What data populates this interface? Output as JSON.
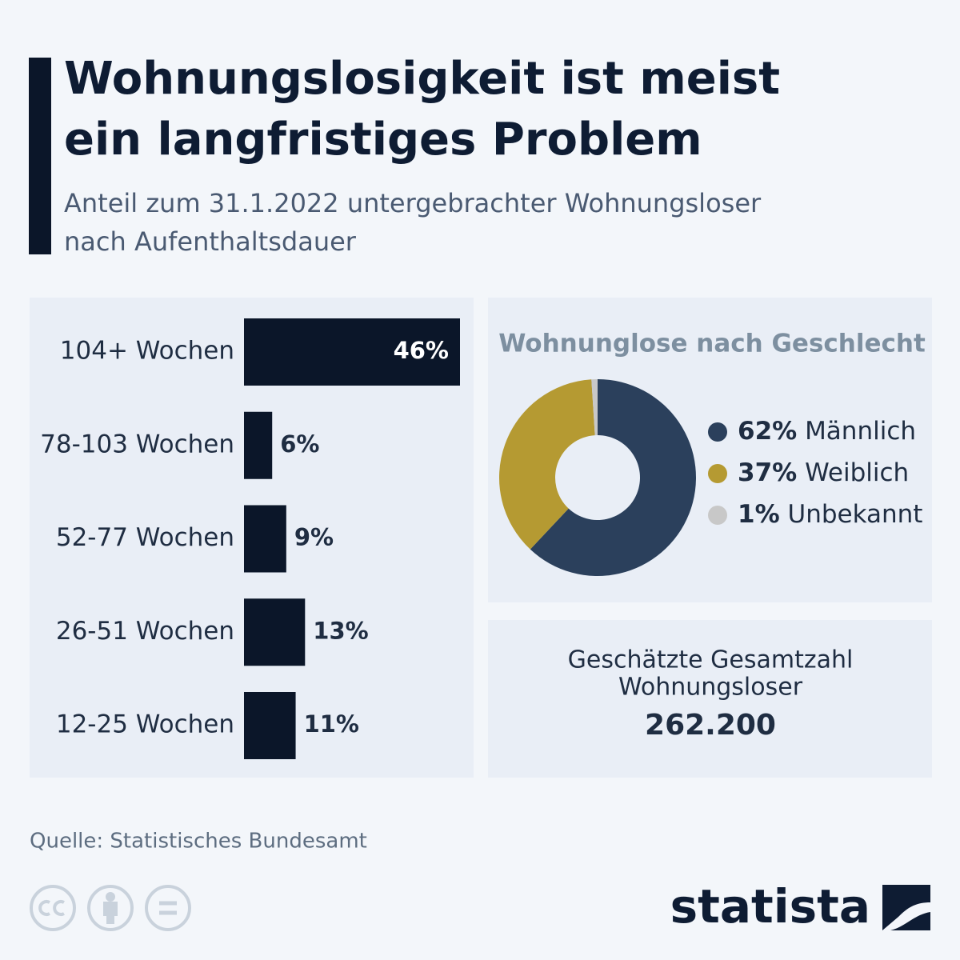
{
  "header": {
    "title_lines": [
      "Wohnungslosigkeit ist meist",
      "ein langfristiges Problem"
    ],
    "subtitle_lines": [
      "Anteil zum 31.1.2022 untergebrachter Wohnungsloser",
      "nach Aufenthaltsdauer"
    ]
  },
  "chart_data": [
    {
      "type": "bar",
      "orientation": "horizontal",
      "categories": [
        "104+ Wochen",
        "78-103 Wochen",
        "52-77 Wochen",
        "26-51 Wochen",
        "12-25 Wochen"
      ],
      "values": [
        46,
        6,
        9,
        13,
        11
      ],
      "value_labels": [
        "46%",
        "6%",
        "9%",
        "13%",
        "11%"
      ],
      "color": "#0b1629"
    },
    {
      "type": "pie",
      "title": "Wohnunglose nach Geschlecht",
      "donut": true,
      "categories": [
        "Männlich",
        "Weiblich",
        "Unbekannt"
      ],
      "values": [
        62,
        37,
        1
      ],
      "value_labels": [
        "62%",
        "37%",
        "1%"
      ],
      "colors": [
        "#2b405c",
        "#b59a32",
        "#c8c8c8"
      ]
    }
  ],
  "total": {
    "label_lines": [
      "Geschätzte Gesamtzahl",
      "Wohnungsloser"
    ],
    "value": "262.200"
  },
  "source": "Quelle: Statistisches Bundesamt",
  "brand": "statista"
}
